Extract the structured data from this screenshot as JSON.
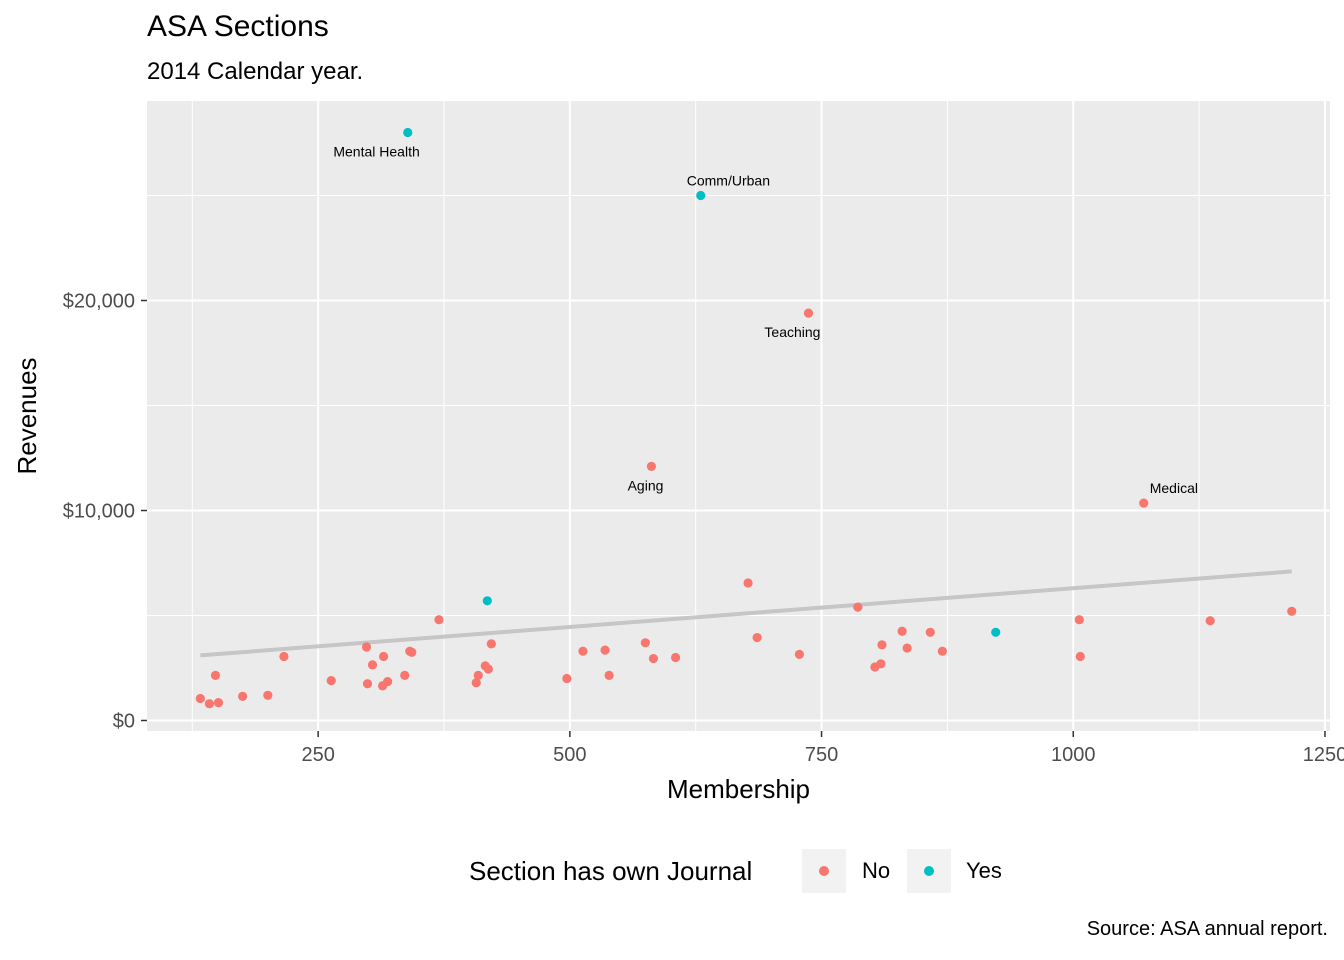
{
  "chart_data": {
    "type": "scatter",
    "title": "ASA Sections",
    "subtitle": "2014 Calendar year.",
    "caption": "Source: ASA annual report.",
    "xlabel": "Membership",
    "ylabel": "Revenues",
    "xlim": [
      80,
      1255
    ],
    "ylim": [
      -500,
      29500
    ],
    "x_ticks": [
      250,
      500,
      750,
      1000,
      1250
    ],
    "x_tick_labels": [
      "250",
      "500",
      "750",
      "1000",
      "1250"
    ],
    "y_ticks": [
      0,
      10000,
      20000
    ],
    "y_tick_labels": [
      "$0",
      "$10,000",
      "$20,000"
    ],
    "grid": true,
    "legend": {
      "title": "Section has own Journal",
      "position": "bottom",
      "entries": [
        {
          "label": "No",
          "color": "#F8766D"
        },
        {
          "label": "Yes",
          "color": "#00BFC4"
        }
      ]
    },
    "colors": {
      "No": "#F8766D",
      "Yes": "#00BFC4",
      "trend": "#c6c6c6",
      "panel": "#ebebeb"
    },
    "trend_line": {
      "x": [
        133,
        1217
      ],
      "y": [
        3100,
        7100
      ]
    },
    "series": [
      {
        "name": "No",
        "points": [
          [
            133,
            1050
          ],
          [
            142,
            800
          ],
          [
            148,
            2150
          ],
          [
            151,
            850
          ],
          [
            175,
            1150
          ],
          [
            200,
            1200
          ],
          [
            216,
            3050
          ],
          [
            263,
            1900
          ],
          [
            298,
            3500
          ],
          [
            299,
            1750
          ],
          [
            304,
            2650
          ],
          [
            314,
            1650
          ],
          [
            315,
            3050
          ],
          [
            319,
            1850
          ],
          [
            336,
            2150
          ],
          [
            341,
            3300
          ],
          [
            343,
            3250
          ],
          [
            370,
            4800
          ],
          [
            407,
            1800
          ],
          [
            409,
            2150
          ],
          [
            416,
            2600
          ],
          [
            419,
            2450
          ],
          [
            422,
            3650
          ],
          [
            497,
            2000
          ],
          [
            513,
            3300
          ],
          [
            535,
            3350
          ],
          [
            539,
            2150
          ],
          [
            575,
            3700
          ],
          [
            583,
            2950
          ],
          [
            605,
            3000
          ],
          [
            581,
            12100
          ],
          [
            677,
            6550
          ],
          [
            686,
            3950
          ],
          [
            728,
            3150
          ],
          [
            737,
            19400
          ],
          [
            786,
            5400
          ],
          [
            803,
            2550
          ],
          [
            809,
            2700
          ],
          [
            810,
            3600
          ],
          [
            830,
            4250
          ],
          [
            835,
            3450
          ],
          [
            858,
            4200
          ],
          [
            870,
            3300
          ],
          [
            1006,
            4800
          ],
          [
            1007,
            3050
          ],
          [
            1070,
            10350
          ],
          [
            1136,
            4750
          ],
          [
            1217,
            5200
          ]
        ]
      },
      {
        "name": "Yes",
        "points": [
          [
            339,
            28000
          ],
          [
            418,
            5700
          ],
          [
            630,
            25000
          ],
          [
            923,
            4200
          ]
        ]
      }
    ],
    "annotations": [
      {
        "text": "Mental Health",
        "x": 339,
        "y": 28000,
        "pos": "below-left"
      },
      {
        "text": "Comm/Urban",
        "x": 630,
        "y": 25000,
        "pos": "above-right"
      },
      {
        "text": "Teaching",
        "x": 737,
        "y": 19400,
        "pos": "below-left"
      },
      {
        "text": "Aging",
        "x": 581,
        "y": 12100,
        "pos": "below-left"
      },
      {
        "text": "Medical",
        "x": 1070,
        "y": 10350,
        "pos": "above-right"
      }
    ]
  }
}
